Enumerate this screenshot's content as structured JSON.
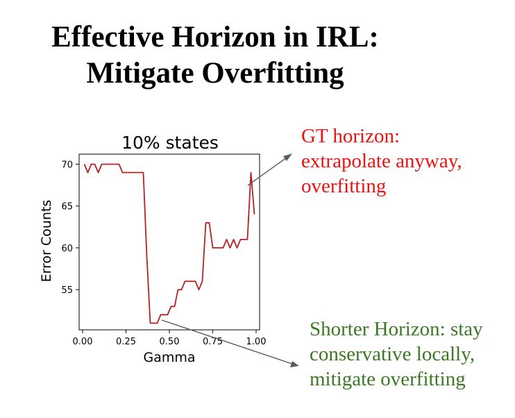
{
  "slide": {
    "title_lines": [
      "Effective Horizon in IRL:",
      "Mitigate Overfitting"
    ]
  },
  "annotations": {
    "gt": {
      "lines": [
        "GT horizon:",
        "extrapolate anyway,",
        "overfitting"
      ],
      "color": "#ee1111"
    },
    "short": {
      "lines": [
        "Shorter Horizon: stay",
        "conservative locally,",
        "mitigate overfitting"
      ],
      "color": "#3a7a22"
    }
  },
  "chart_data": {
    "type": "line",
    "title": "10% states",
    "xlabel": "Gamma",
    "ylabel": "Error Counts",
    "xlim": [
      -0.02,
      1.02
    ],
    "ylim": [
      50.2,
      71.2
    ],
    "xticks": [
      0.0,
      0.25,
      0.5,
      0.75,
      1.0
    ],
    "xtick_labels": [
      "0.00",
      "0.25",
      "0.50",
      "0.75",
      "1.00"
    ],
    "yticks": [
      55,
      60,
      65,
      70
    ],
    "ytick_labels": [
      "55",
      "60",
      "65",
      "70"
    ],
    "grid": false,
    "series": [
      {
        "color": "#b22222",
        "x": [
          0.01,
          0.03,
          0.05,
          0.07,
          0.09,
          0.11,
          0.13,
          0.15,
          0.17,
          0.19,
          0.21,
          0.23,
          0.25,
          0.27,
          0.29,
          0.31,
          0.33,
          0.35,
          0.37,
          0.39,
          0.41,
          0.43,
          0.45,
          0.47,
          0.49,
          0.51,
          0.53,
          0.55,
          0.57,
          0.59,
          0.61,
          0.63,
          0.65,
          0.67,
          0.69,
          0.71,
          0.73,
          0.75,
          0.77,
          0.79,
          0.81,
          0.83,
          0.85,
          0.87,
          0.89,
          0.91,
          0.93,
          0.95,
          0.97,
          0.99
        ],
        "y": [
          70,
          69,
          70,
          70,
          69,
          70,
          70,
          70,
          70,
          70,
          70,
          69,
          69,
          69,
          69,
          69,
          69,
          69,
          59,
          51,
          51,
          51,
          52,
          52,
          52,
          53,
          53,
          55,
          55,
          56,
          56,
          56,
          56,
          55,
          56,
          63,
          63,
          60,
          60,
          60,
          60,
          61,
          60,
          61,
          60,
          61,
          61,
          61,
          69,
          64
        ]
      }
    ]
  }
}
